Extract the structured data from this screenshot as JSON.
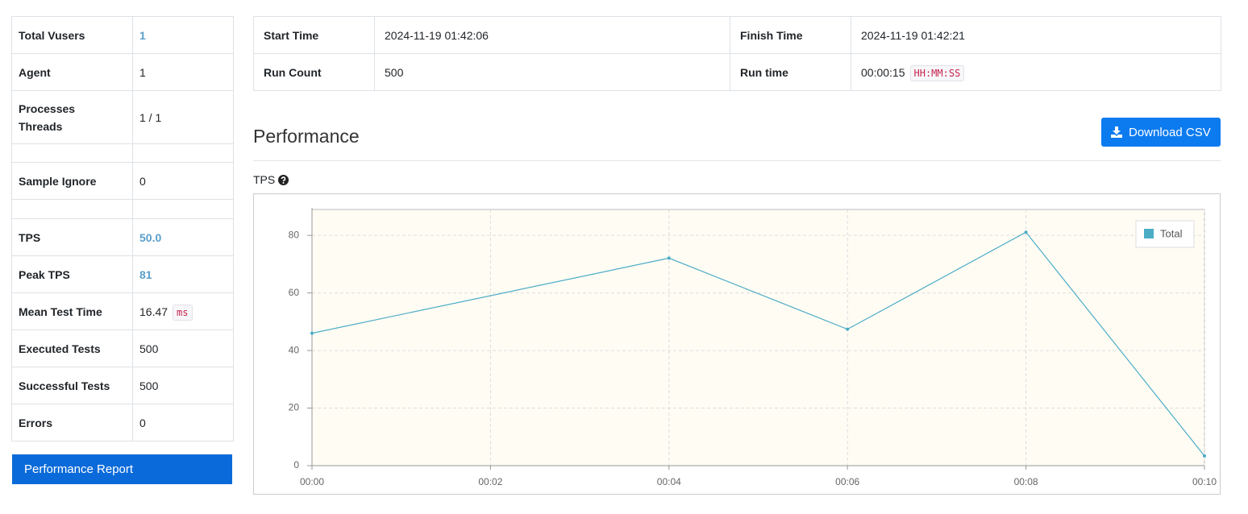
{
  "summary": {
    "total_vusers": {
      "label": "Total Vusers",
      "value": "1"
    },
    "agent": {
      "label": "Agent",
      "value": "1"
    },
    "processes_threads": {
      "label": [
        "Processes",
        "Threads"
      ],
      "value": "1 / 1"
    },
    "sample_ignore": {
      "label": "Sample Ignore",
      "value": "0"
    },
    "tps": {
      "label": "TPS",
      "value": "50.0"
    },
    "peak_tps": {
      "label": "Peak TPS",
      "value": "81"
    },
    "mean_test_time": {
      "label": "Mean Test Time",
      "value": "16.47",
      "unit": "ms"
    },
    "executed_tests": {
      "label": "Executed Tests",
      "value": "500"
    },
    "successful_tests": {
      "label": "Successful Tests",
      "value": "500"
    },
    "errors": {
      "label": "Errors",
      "value": "0"
    }
  },
  "report_button": "Performance Report",
  "run_info": {
    "start_time": {
      "label": "Start Time",
      "value": "2024-11-19 01:42:06"
    },
    "finish_time": {
      "label": "Finish Time",
      "value": "2024-11-19 01:42:21"
    },
    "run_count": {
      "label": "Run Count",
      "value": "500"
    },
    "run_time": {
      "label": "Run time",
      "value": "00:00:15",
      "unit": "HH:MM:SS"
    }
  },
  "performance": {
    "title": "Performance",
    "download_button": "Download CSV"
  },
  "chart_data": {
    "type": "line",
    "title": "TPS",
    "x": [
      0,
      4,
      6,
      8,
      10
    ],
    "series": [
      {
        "name": "Total",
        "color": "#4bacc6",
        "values": [
          46.0,
          72.1,
          47.4,
          81.1,
          3.4
        ]
      }
    ],
    "xlim": [
      0,
      10
    ],
    "xticks": [
      {
        "value": 0,
        "label": "00:00"
      },
      {
        "value": 2,
        "label": "00:02"
      },
      {
        "value": 4,
        "label": "00:04"
      },
      {
        "value": 6,
        "label": "00:06"
      },
      {
        "value": 8,
        "label": "00:08"
      },
      {
        "value": 10,
        "label": "00:10"
      }
    ],
    "ylim": [
      0,
      89
    ],
    "yticks": [
      0,
      20,
      40,
      60,
      80
    ],
    "grid": true,
    "legend": "top-right"
  }
}
